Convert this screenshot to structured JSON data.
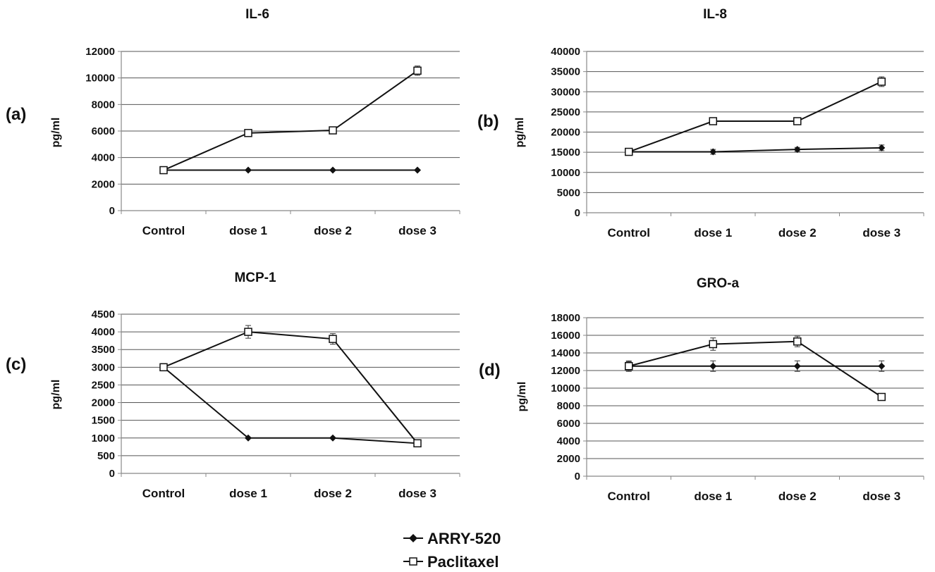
{
  "chart_data": [
    {
      "type": "line",
      "panel_label": "(a)",
      "title": "IL-6",
      "xlabel": "",
      "ylabel": "pg/ml",
      "categories": [
        "Control",
        "dose 1",
        "dose 2",
        "dose 3"
      ],
      "ylim": [
        0,
        12000
      ],
      "yticks": [
        0,
        2000,
        4000,
        6000,
        8000,
        10000,
        12000
      ],
      "grid": true,
      "series": [
        {
          "name": "ARRY-520",
          "marker": "filled-diamond",
          "values": [
            3050,
            3050,
            3050,
            3050
          ],
          "errors": [
            0,
            0,
            0,
            0
          ]
        },
        {
          "name": "Paclitaxel",
          "marker": "open-square",
          "values": [
            3050,
            5850,
            6050,
            10550
          ],
          "errors": [
            150,
            200,
            180,
            350
          ]
        }
      ]
    },
    {
      "type": "line",
      "panel_label": "(b)",
      "title": "IL-8",
      "xlabel": "",
      "ylabel": "pg/ml",
      "categories": [
        "Control",
        "dose 1",
        "dose 2",
        "dose 3"
      ],
      "ylim": [
        0,
        40000
      ],
      "yticks": [
        0,
        5000,
        10000,
        15000,
        20000,
        25000,
        30000,
        35000,
        40000
      ],
      "grid": true,
      "series": [
        {
          "name": "ARRY-520",
          "marker": "filled-diamond",
          "values": [
            15100,
            15100,
            15700,
            16100
          ],
          "errors": [
            500,
            600,
            500,
            700
          ]
        },
        {
          "name": "Paclitaxel",
          "marker": "open-square",
          "values": [
            15100,
            22700,
            22700,
            32500
          ],
          "errors": [
            500,
            800,
            700,
            1200
          ]
        }
      ]
    },
    {
      "type": "line",
      "panel_label": "(c)",
      "title": "MCP-1",
      "xlabel": "",
      "ylabel": "pg/ml",
      "categories": [
        "Control",
        "dose 1",
        "dose 2",
        "dose 3"
      ],
      "ylim": [
        0,
        4500
      ],
      "yticks": [
        0,
        500,
        1000,
        1500,
        2000,
        2500,
        3000,
        3500,
        4000,
        4500
      ],
      "grid": true,
      "series": [
        {
          "name": "ARRY-520",
          "marker": "filled-diamond",
          "values": [
            3000,
            1000,
            1000,
            850
          ],
          "errors": [
            100,
            0,
            0,
            0
          ]
        },
        {
          "name": "Paclitaxel",
          "marker": "open-square",
          "values": [
            3000,
            4000,
            3800,
            850
          ],
          "errors": [
            100,
            180,
            150,
            50
          ]
        }
      ]
    },
    {
      "type": "line",
      "panel_label": "(d)",
      "title": "GRO-a",
      "xlabel": "",
      "ylabel": "pg/ml",
      "categories": [
        "Control",
        "dose 1",
        "dose 2",
        "dose 3"
      ],
      "ylim": [
        0,
        18000
      ],
      "yticks": [
        0,
        2000,
        4000,
        6000,
        8000,
        10000,
        12000,
        14000,
        16000,
        18000
      ],
      "grid": true,
      "series": [
        {
          "name": "ARRY-520",
          "marker": "filled-diamond",
          "values": [
            12500,
            12500,
            12500,
            12500
          ],
          "errors": [
            600,
            600,
            600,
            600
          ]
        },
        {
          "name": "Paclitaxel",
          "marker": "open-square",
          "values": [
            12500,
            15000,
            15300,
            9000
          ],
          "errors": [
            500,
            700,
            600,
            200
          ]
        }
      ]
    }
  ],
  "legend": {
    "placement": "bottom-center",
    "items": [
      {
        "label": "ARRY-520",
        "marker": "filled-diamond"
      },
      {
        "label": "Paclitaxel",
        "marker": "open-square"
      }
    ]
  },
  "colors": {
    "line": "#111111",
    "grid": "#555555",
    "axis": "#888888"
  }
}
